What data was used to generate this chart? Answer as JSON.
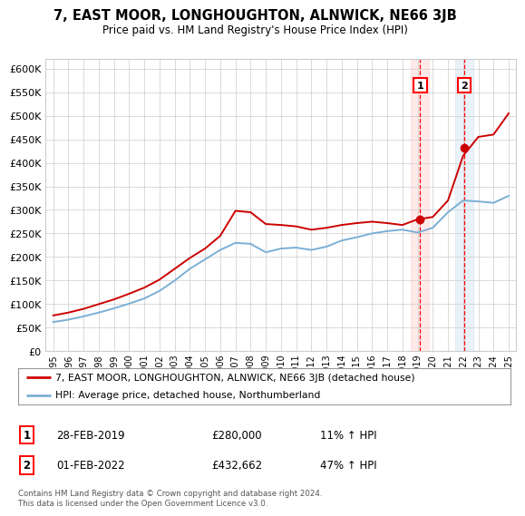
{
  "title": "7, EAST MOOR, LONGHOUGHTON, ALNWICK, NE66 3JB",
  "subtitle": "Price paid vs. HM Land Registry's House Price Index (HPI)",
  "legend_line1": "7, EAST MOOR, LONGHOUGHTON, ALNWICK, NE66 3JB (detached house)",
  "legend_line2": "HPI: Average price, detached house, Northumberland",
  "annotation1_label": "1",
  "annotation1_date": "28-FEB-2019",
  "annotation1_price": "£280,000",
  "annotation1_hpi": "11% ↑ HPI",
  "annotation1_year": 2019.17,
  "annotation1_value": 280000,
  "annotation2_label": "2",
  "annotation2_date": "01-FEB-2022",
  "annotation2_price": "£432,662",
  "annotation2_hpi": "47% ↑ HPI",
  "annotation2_year": 2022.08,
  "annotation2_value": 432662,
  "footer": "Contains HM Land Registry data © Crown copyright and database right 2024.\nThis data is licensed under the Open Government Licence v3.0.",
  "hpi_color": "#7bafd4",
  "price_color": "#cc0000",
  "ylim": [
    0,
    620000
  ],
  "yticks": [
    0,
    50000,
    100000,
    150000,
    200000,
    250000,
    300000,
    350000,
    400000,
    450000,
    500000,
    550000,
    600000
  ],
  "hpi_years": [
    1995,
    1996,
    1997,
    1998,
    1999,
    2000,
    2001,
    2002,
    2003,
    2004,
    2005,
    2006,
    2007,
    2008,
    2009,
    2010,
    2011,
    2012,
    2013,
    2014,
    2015,
    2016,
    2017,
    2018,
    2019,
    2020,
    2021,
    2022,
    2023,
    2024,
    2025
  ],
  "hpi_values": [
    62000,
    67000,
    74000,
    82000,
    91000,
    101000,
    112000,
    128000,
    150000,
    175000,
    195000,
    215000,
    230000,
    228000,
    210000,
    218000,
    220000,
    215000,
    222000,
    235000,
    242000,
    250000,
    255000,
    258000,
    252000,
    262000,
    295000,
    320000,
    318000,
    315000,
    330000
  ],
  "price_years": [
    1995,
    1996,
    1997,
    1998,
    1999,
    2000,
    2001,
    2002,
    2003,
    2004,
    2005,
    2006,
    2007,
    2008,
    2009,
    2010,
    2011,
    2012,
    2013,
    2014,
    2015,
    2016,
    2017,
    2018,
    2019,
    2020,
    2021,
    2022,
    2023,
    2024,
    2025
  ],
  "price_values": [
    76000,
    82000,
    90000,
    100000,
    110000,
    122000,
    135000,
    152000,
    175000,
    198000,
    218000,
    245000,
    298000,
    295000,
    270000,
    268000,
    265000,
    258000,
    262000,
    268000,
    272000,
    275000,
    272000,
    268000,
    280000,
    285000,
    320000,
    415000,
    455000,
    460000,
    505000
  ],
  "background_color": "#ffffff",
  "grid_color": "#cccccc",
  "shade_color1": "#ffcccc",
  "shade_color2": "#ccdff0"
}
